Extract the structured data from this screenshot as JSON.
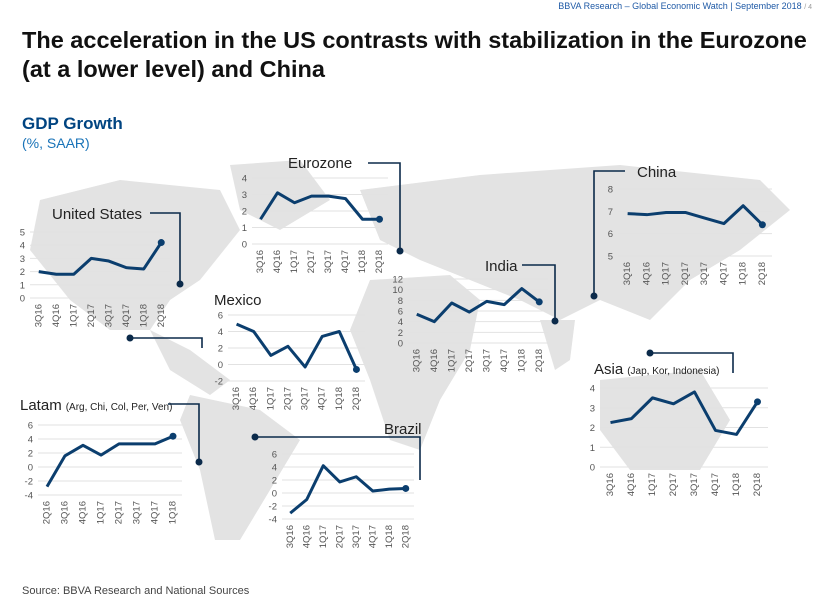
{
  "header": {
    "text": "BBVA Research – Global Economic Watch | September 2018",
    "page": "/ 4"
  },
  "title": "The acceleration in the US contrasts with stabilization in the Eurozone (at a lower level) and China",
  "subtitle": "GDP Growth",
  "unit": "(%, SAAR)",
  "source": "Source: BBVA Research and National Sources",
  "colors": {
    "line": "#0b3e6e",
    "accent": "#004481",
    "map": "#e3e3e3",
    "grid": "#e6e6e6"
  },
  "chart_data": [
    {
      "id": "us",
      "type": "line",
      "title": "United States",
      "title_note": "",
      "categories": [
        "3Q16",
        "4Q16",
        "1Q17",
        "2Q17",
        "3Q17",
        "4Q17",
        "1Q18",
        "2Q18"
      ],
      "values": [
        2.0,
        1.8,
        1.8,
        3.0,
        2.8,
        2.3,
        2.2,
        4.2
      ],
      "ylim": [
        0,
        5
      ],
      "yticks": [
        0,
        1,
        2,
        3,
        4,
        5
      ]
    },
    {
      "id": "eurozone",
      "type": "line",
      "title": "Eurozone",
      "title_note": "",
      "categories": [
        "3Q16",
        "4Q16",
        "1Q17",
        "2Q17",
        "3Q17",
        "4Q17",
        "1Q18",
        "2Q18"
      ],
      "values": [
        1.5,
        3.1,
        2.5,
        2.9,
        2.9,
        2.75,
        1.5,
        1.5
      ],
      "ylim": [
        0,
        4
      ],
      "yticks": [
        0,
        1,
        2,
        3,
        4
      ]
    },
    {
      "id": "china",
      "type": "line",
      "title": "China",
      "title_note": "",
      "categories": [
        "3Q16",
        "4Q16",
        "1Q17",
        "2Q17",
        "3Q17",
        "4Q17",
        "1Q18",
        "2Q18"
      ],
      "values": [
        6.9,
        6.85,
        6.95,
        6.95,
        6.7,
        6.45,
        7.25,
        6.4
      ],
      "ylim": [
        5,
        8
      ],
      "yticks": [
        5,
        6,
        7,
        8
      ]
    },
    {
      "id": "india",
      "type": "line",
      "title": "India",
      "title_note": "",
      "categories": [
        "3Q16",
        "4Q16",
        "1Q17",
        "2Q17",
        "3Q17",
        "4Q17",
        "1Q18",
        "2Q18"
      ],
      "values": [
        5.4,
        4.0,
        7.5,
        5.8,
        7.8,
        7.2,
        10.2,
        7.7
      ],
      "ylim": [
        0,
        12
      ],
      "yticks": [
        0,
        2,
        4,
        6,
        8,
        10,
        12
      ]
    },
    {
      "id": "mexico",
      "type": "line",
      "title": "Mexico",
      "title_note": "",
      "categories": [
        "3Q16",
        "4Q16",
        "1Q17",
        "2Q17",
        "3Q17",
        "4Q17",
        "1Q18",
        "2Q18"
      ],
      "values": [
        4.9,
        4.0,
        1.1,
        2.2,
        -0.3,
        3.4,
        4.0,
        -0.6
      ],
      "ylim": [
        -2,
        6
      ],
      "yticks": [
        -2,
        0,
        2,
        4,
        6
      ]
    },
    {
      "id": "latam",
      "type": "line",
      "title": "Latam",
      "title_note": "(Arg, Chi, Col, Per, Ven)",
      "categories": [
        "2Q16",
        "3Q16",
        "4Q16",
        "1Q17",
        "2Q17",
        "3Q17",
        "4Q17",
        "1Q18"
      ],
      "values": [
        -2.8,
        1.6,
        3.1,
        1.7,
        3.3,
        3.3,
        3.3,
        4.4
      ],
      "ylim": [
        -4,
        6
      ],
      "yticks": [
        -4,
        -2,
        0,
        2,
        4,
        6
      ]
    },
    {
      "id": "brazil",
      "type": "line",
      "title": "Brazil",
      "title_note": "",
      "categories": [
        "3Q16",
        "4Q16",
        "1Q17",
        "2Q17",
        "3Q17",
        "4Q17",
        "1Q18",
        "2Q18"
      ],
      "values": [
        -3.1,
        -1.0,
        4.2,
        1.7,
        2.5,
        0.3,
        0.6,
        0.7
      ],
      "ylim": [
        -4,
        6
      ],
      "yticks": [
        -4,
        -2,
        0,
        2,
        4,
        6
      ]
    },
    {
      "id": "asia",
      "type": "line",
      "title": "Asia",
      "title_note": "(Jap, Kor, Indonesia)",
      "categories": [
        "3Q16",
        "4Q16",
        "1Q17",
        "2Q17",
        "3Q17",
        "4Q17",
        "1Q18",
        "2Q18"
      ],
      "values": [
        2.25,
        2.45,
        3.5,
        3.2,
        3.8,
        1.85,
        1.65,
        3.3
      ],
      "ylim": [
        0,
        4
      ],
      "yticks": [
        0,
        1,
        2,
        3,
        4
      ]
    }
  ]
}
